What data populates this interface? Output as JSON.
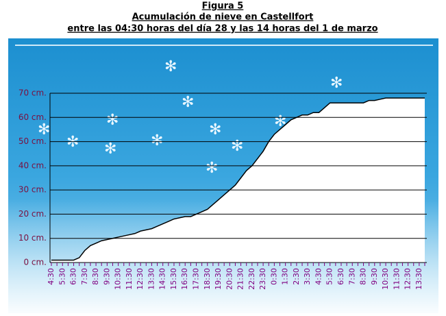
{
  "chart_data": {
    "type": "area",
    "title": [
      "Figura 5",
      "Acumulación de nieve en Castellfort",
      "entre las 04:30 horas del día 28 y las 14 horas del 1 de marzo"
    ],
    "categories": [
      "4:30",
      null,
      "5:30",
      null,
      "6:30",
      null,
      "7:30",
      null,
      "8:30",
      null,
      "9:30",
      null,
      "10:30",
      null,
      "11:30",
      null,
      "12:30",
      null,
      "13:30",
      null,
      "14:30",
      null,
      "15:30",
      null,
      "16:30",
      null,
      "17:30",
      null,
      "18:30",
      null,
      "19:30",
      null,
      "20:30",
      null,
      "21:30",
      null,
      "22:30",
      null,
      "23:30",
      null,
      "0:30",
      null,
      "1:30",
      null,
      "2:30",
      null,
      "3:30",
      null,
      "4:30",
      null,
      "5:30",
      null,
      "6:30",
      null,
      "7:30",
      null,
      "8:30",
      null,
      "9:30",
      null,
      "10:30",
      null,
      "11:30",
      null,
      "12:30",
      null,
      "13:30",
      null
    ],
    "values": [
      1,
      1,
      1,
      1,
      1,
      2,
      5,
      7,
      8,
      9,
      9.5,
      10,
      10.5,
      11,
      11.5,
      12,
      13,
      13.5,
      14,
      15,
      16,
      17,
      18,
      18.5,
      19,
      19,
      20,
      21,
      22,
      24,
      26,
      28,
      30,
      32,
      35,
      38,
      40,
      43,
      46,
      50,
      53,
      55,
      57,
      59,
      60,
      61,
      61,
      62,
      62,
      64,
      66,
      66,
      66,
      66,
      66,
      66,
      66,
      67,
      67,
      67.5,
      68,
      68,
      68,
      68,
      68,
      68,
      68,
      68
    ],
    "color": "#ffffff",
    "ylim": [
      0,
      70
    ],
    "yticks": [
      {
        "value": 0,
        "label": "0 cm."
      },
      {
        "value": 10,
        "label": "10 cm."
      },
      {
        "value": 20,
        "label": "20 cm."
      },
      {
        "value": 30,
        "label": "30 cm."
      },
      {
        "value": 40,
        "label": "40 cm."
      },
      {
        "value": 50,
        "label": "50 cm."
      },
      {
        "value": 60,
        "label": "60 cm."
      },
      {
        "value": 70,
        "label": "70 cm."
      }
    ],
    "grid": true
  }
}
